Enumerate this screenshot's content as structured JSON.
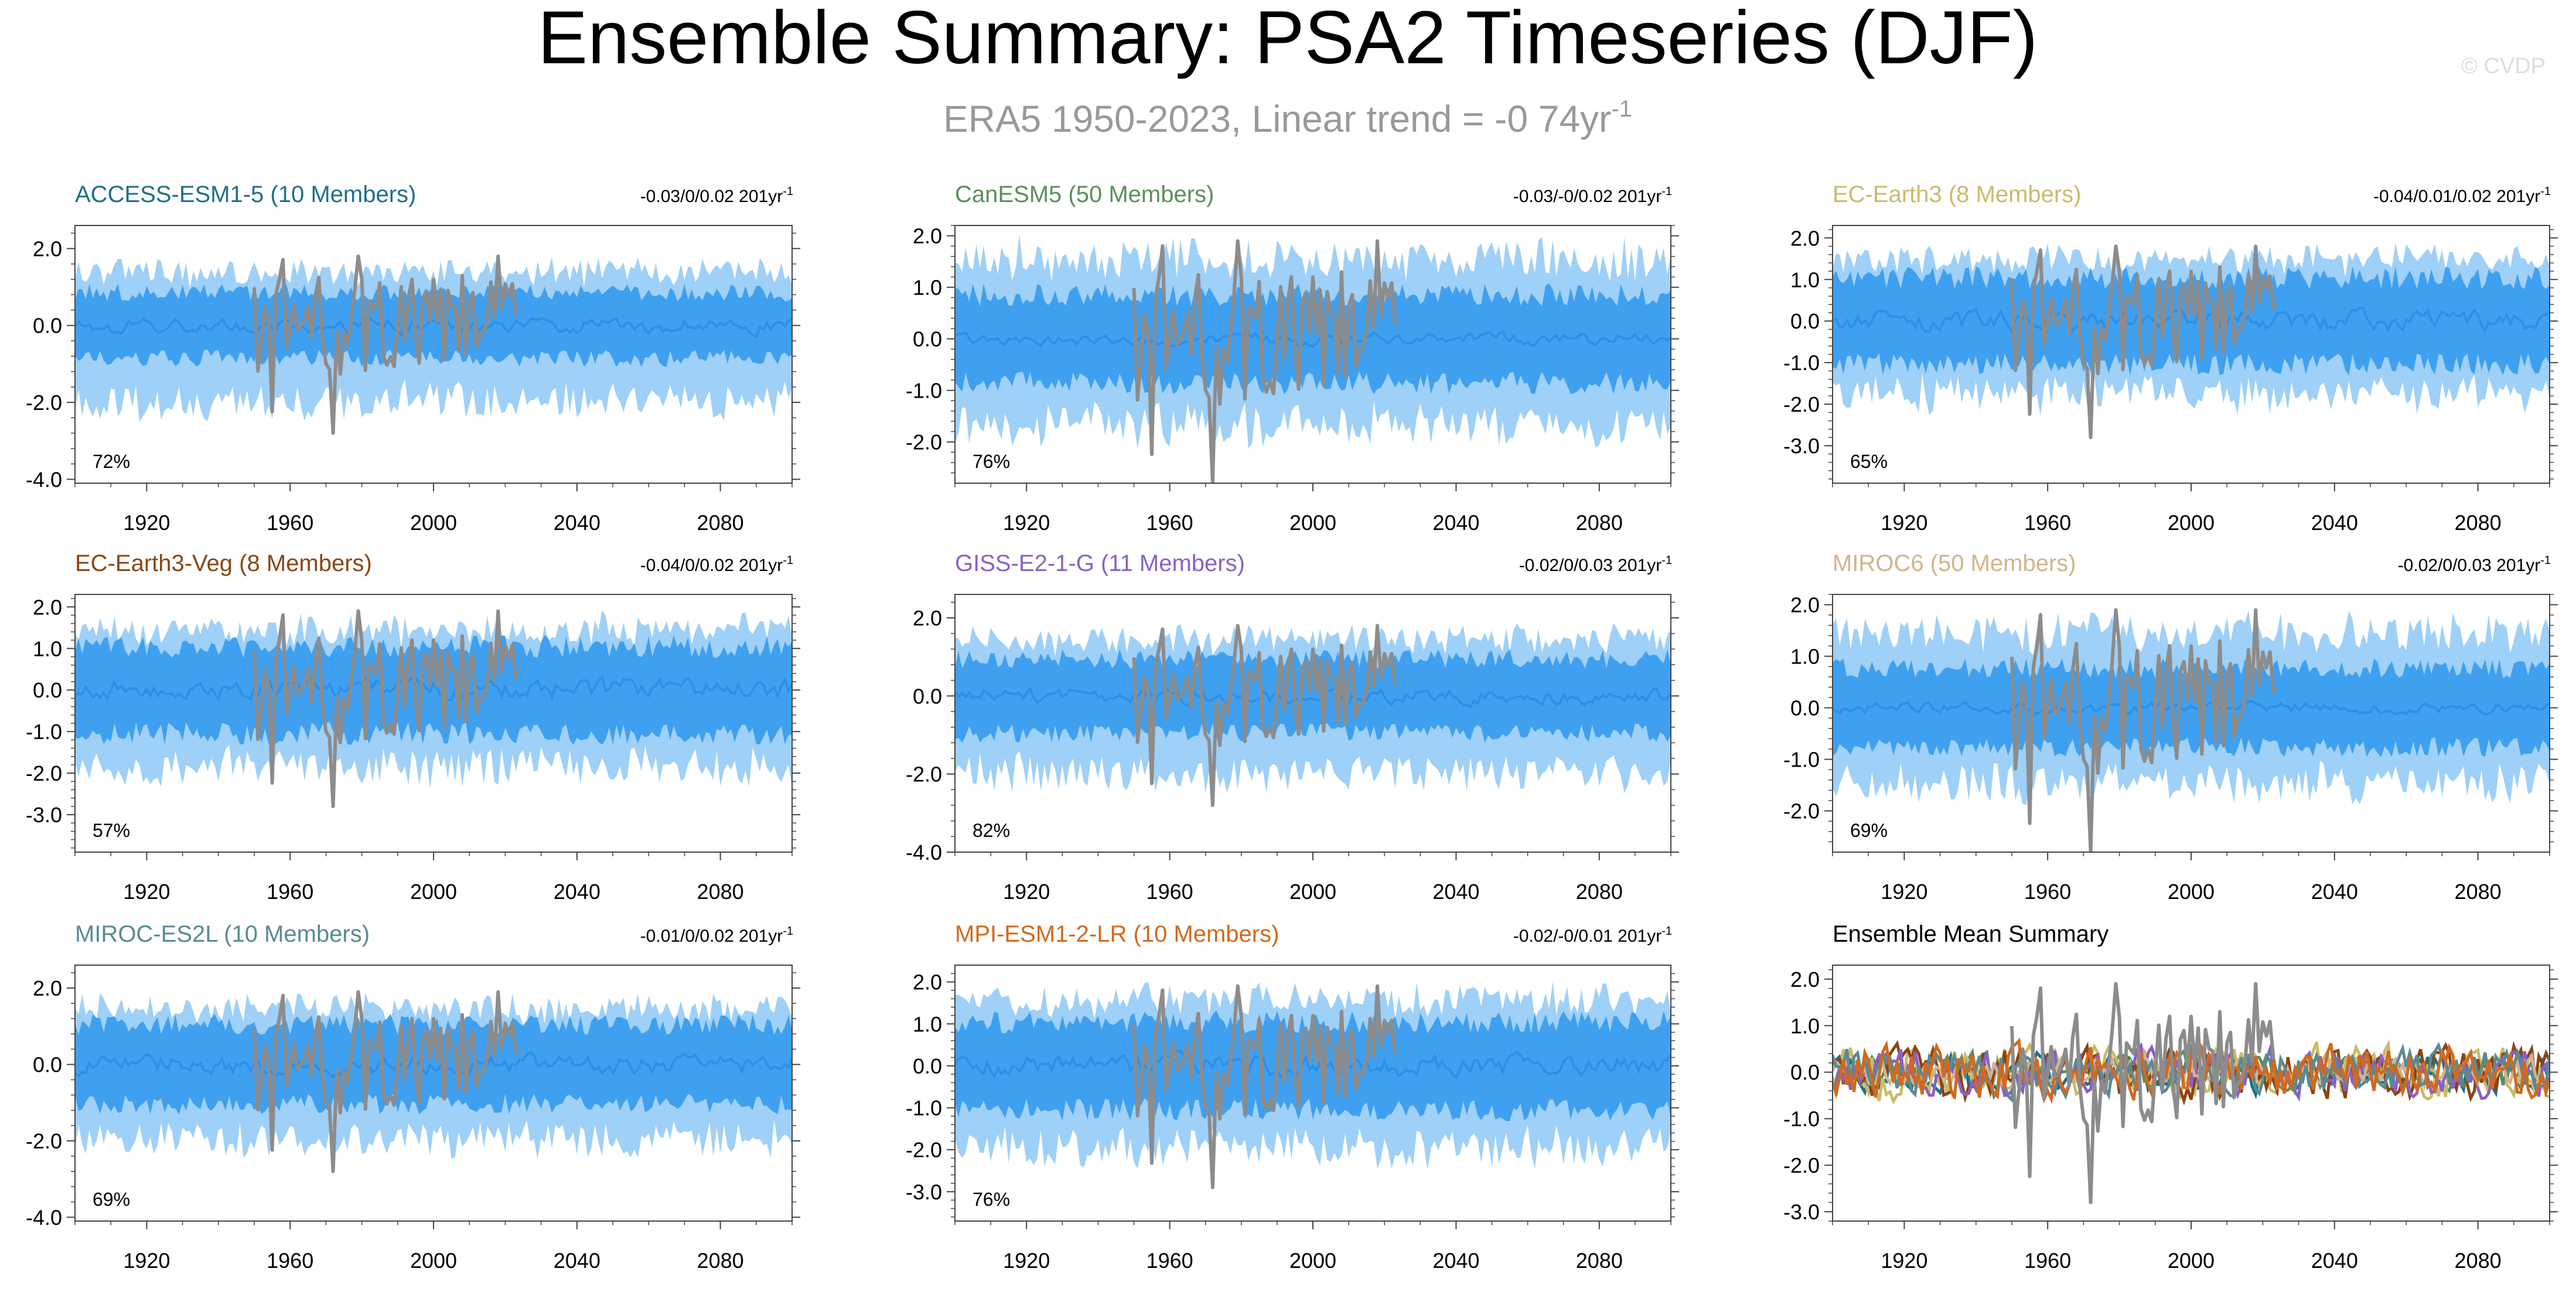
{
  "figure": {
    "title": "Ensemble Summary: PSA2 Timeseries (DJF)",
    "subtitle_prefix": "ERA5 1950-2023, Linear trend = -0 74yr",
    "subtitle_sup": "-1",
    "watermark": "© CVDP"
  },
  "colors": {
    "band_outer": "#9fd0f7",
    "band_inner": "#3fa0ef",
    "mean_line": "#2f8fe6",
    "obs_line": "#8c8c8c",
    "axis": "#444444",
    "title_text": "#000000",
    "subtitle_text": "#999999",
    "watermark_text": "#dddddd"
  },
  "chart_data": [
    {
      "type": "area",
      "title": "ACCESS-ESM1-5 (10 Members)",
      "title_color": "#1f6f8b",
      "trend_text": "-0.03/0/0.02 201yr",
      "trend_sup": "-1",
      "pct_label": "72%",
      "xlim": [
        1900,
        2100
      ],
      "ylim": [
        -4.1,
        2.6
      ],
      "yticks": [
        2.0,
        0.0,
        -2.0,
        -4.0
      ],
      "ytick_labels": [
        "2.0",
        "0.0",
        "-2.0",
        "-4.0"
      ],
      "xticks": [
        1920,
        1960,
        2000,
        2040,
        2080
      ],
      "xtick_labels": [
        "1920",
        "1960",
        "2000",
        "2040",
        "2080"
      ],
      "band_scale": 1.0,
      "series": [
        {
          "name": "ensemble_range",
          "kind": "band",
          "low": -2.0,
          "high": 1.4
        },
        {
          "name": "inner_range",
          "kind": "band",
          "low": -0.9,
          "high": 0.9
        },
        {
          "name": "ensemble_mean",
          "kind": "line",
          "amplitude": 0.2
        },
        {
          "name": "ERA5",
          "kind": "obs",
          "x_start": 1950,
          "x_end": 2023,
          "min": -2.8,
          "max": 1.8
        }
      ]
    },
    {
      "type": "area",
      "title": "CanESM5 (50 Members)",
      "title_color": "#5b8f5b",
      "trend_text": "-0.03/-0/0.02 201yr",
      "trend_sup": "-1",
      "pct_label": "76%",
      "xlim": [
        1900,
        2100
      ],
      "ylim": [
        -2.8,
        2.2
      ],
      "yticks": [
        2.0,
        1.0,
        0.0,
        -1.0,
        -2.0
      ],
      "ytick_labels": [
        "2.0",
        "1.0",
        "0.0",
        "-1.0",
        "-2.0"
      ],
      "xticks": [
        1920,
        1960,
        2000,
        2040,
        2080
      ],
      "xtick_labels": [
        "1920",
        "1960",
        "2000",
        "2040",
        "2080"
      ],
      "band_scale": 1.0,
      "series": [
        {
          "name": "ensemble_range",
          "kind": "band",
          "low": -1.7,
          "high": 1.6
        },
        {
          "name": "inner_range",
          "kind": "band",
          "low": -0.9,
          "high": 0.9
        },
        {
          "name": "ensemble_mean",
          "kind": "line",
          "amplitude": 0.12
        },
        {
          "name": "ERA5",
          "kind": "obs",
          "x_start": 1950,
          "x_end": 2023,
          "min": -2.8,
          "max": 1.9
        }
      ]
    },
    {
      "type": "area",
      "title": "EC-Earth3 (8 Members)",
      "title_color": "#c8bc6a",
      "trend_text": "-0.04/0.01/0.02 201yr",
      "trend_sup": "-1",
      "pct_label": "65%",
      "xlim": [
        1900,
        2100
      ],
      "ylim": [
        -3.9,
        2.3
      ],
      "yticks": [
        2.0,
        1.0,
        0.0,
        -1.0,
        -2.0,
        -3.0
      ],
      "ytick_labels": [
        "2.0",
        "1.0",
        "0.0",
        "-1.0",
        "-2.0",
        "-3.0"
      ],
      "xticks": [
        1920,
        1960,
        2000,
        2040,
        2080
      ],
      "xtick_labels": [
        "1920",
        "1960",
        "2000",
        "2040",
        "2080"
      ],
      "band_scale": 1.0,
      "series": [
        {
          "name": "ensemble_range",
          "kind": "band",
          "low": -1.8,
          "high": 1.5
        },
        {
          "name": "inner_range",
          "kind": "band",
          "low": -1.1,
          "high": 1.1
        },
        {
          "name": "ensemble_mean",
          "kind": "line",
          "amplitude": 0.25
        },
        {
          "name": "ERA5",
          "kind": "obs",
          "x_start": 1950,
          "x_end": 2023,
          "min": -2.8,
          "max": 1.8
        }
      ]
    },
    {
      "type": "area",
      "title": "EC-Earth3-Veg (8 Members)",
      "title_color": "#8b4513",
      "trend_text": "-0.04/0/0.02 201yr",
      "trend_sup": "-1",
      "pct_label": "57%",
      "xlim": [
        1900,
        2100
      ],
      "ylim": [
        -3.9,
        2.3
      ],
      "yticks": [
        2.0,
        1.0,
        0.0,
        -1.0,
        -2.0,
        -3.0
      ],
      "ytick_labels": [
        "2.0",
        "1.0",
        "0.0",
        "-1.0",
        "-2.0",
        "-3.0"
      ],
      "xticks": [
        1920,
        1960,
        2000,
        2040,
        2080
      ],
      "xtick_labels": [
        "1920",
        "1960",
        "2000",
        "2040",
        "2080"
      ],
      "band_scale": 1.0,
      "series": [
        {
          "name": "ensemble_range",
          "kind": "band",
          "low": -1.9,
          "high": 1.5
        },
        {
          "name": "inner_range",
          "kind": "band",
          "low": -1.1,
          "high": 1.1
        },
        {
          "name": "ensemble_mean",
          "kind": "line",
          "amplitude": 0.25
        },
        {
          "name": "ERA5",
          "kind": "obs",
          "x_start": 1950,
          "x_end": 2023,
          "min": -2.8,
          "max": 1.9
        }
      ]
    },
    {
      "type": "area",
      "title": "GISS-E2-1-G (11 Members)",
      "title_color": "#8a60c8",
      "trend_text": "-0.02/0/0.03 201yr",
      "trend_sup": "-1",
      "pct_label": "82%",
      "xlim": [
        1900,
        2100
      ],
      "ylim": [
        -4.0,
        2.6
      ],
      "yticks": [
        2.0,
        0.0,
        -2.0,
        -4.0
      ],
      "ytick_labels": [
        "2.0",
        "0.0",
        "-2.0",
        "-4.0"
      ],
      "xticks": [
        1920,
        1960,
        2000,
        2040,
        2080
      ],
      "xtick_labels": [
        "1920",
        "1960",
        "2000",
        "2040",
        "2080"
      ],
      "band_scale": 1.0,
      "series": [
        {
          "name": "ensemble_range",
          "kind": "band",
          "low": -2.0,
          "high": 1.5
        },
        {
          "name": "inner_range",
          "kind": "band",
          "low": -1.0,
          "high": 1.0
        },
        {
          "name": "ensemble_mean",
          "kind": "line",
          "amplitude": 0.2
        },
        {
          "name": "ERA5",
          "kind": "obs",
          "x_start": 1950,
          "x_end": 2023,
          "min": -2.8,
          "max": 1.8
        }
      ]
    },
    {
      "type": "area",
      "title": "MIROC6 (50 Members)",
      "title_color": "#d2b48c",
      "trend_text": "-0.02/0/0.03 201yr",
      "trend_sup": "-1",
      "pct_label": "69%",
      "xlim": [
        1900,
        2100
      ],
      "ylim": [
        -2.8,
        2.2
      ],
      "yticks": [
        2.0,
        1.0,
        0.0,
        -1.0,
        -2.0
      ],
      "ytick_labels": [
        "2.0",
        "1.0",
        "0.0",
        "-1.0",
        "-2.0"
      ],
      "xticks": [
        1920,
        1960,
        2000,
        2040,
        2080
      ],
      "xtick_labels": [
        "1920",
        "1960",
        "2000",
        "2040",
        "2080"
      ],
      "band_scale": 1.0,
      "series": [
        {
          "name": "ensemble_range",
          "kind": "band",
          "low": -1.5,
          "high": 1.5
        },
        {
          "name": "inner_range",
          "kind": "band",
          "low": -0.8,
          "high": 0.8
        },
        {
          "name": "ensemble_mean",
          "kind": "line",
          "amplitude": 0.1
        },
        {
          "name": "ERA5",
          "kind": "obs",
          "x_start": 1950,
          "x_end": 2023,
          "min": -2.8,
          "max": 1.9
        }
      ]
    },
    {
      "type": "area",
      "title": "MIROC-ES2L (10 Members)",
      "title_color": "#5a8a92",
      "trend_text": "-0.01/0/0.02 201yr",
      "trend_sup": "-1",
      "pct_label": "69%",
      "xlim": [
        1900,
        2100
      ],
      "ylim": [
        -4.1,
        2.6
      ],
      "yticks": [
        2.0,
        0.0,
        -2.0,
        -4.0
      ],
      "ytick_labels": [
        "2.0",
        "0.0",
        "-2.0",
        "-4.0"
      ],
      "xticks": [
        1920,
        1960,
        2000,
        2040,
        2080
      ],
      "xtick_labels": [
        "1920",
        "1960",
        "2000",
        "2040",
        "2080"
      ],
      "band_scale": 1.0,
      "series": [
        {
          "name": "ensemble_range",
          "kind": "band",
          "low": -2.0,
          "high": 1.5
        },
        {
          "name": "inner_range",
          "kind": "band",
          "low": -1.1,
          "high": 1.1
        },
        {
          "name": "ensemble_mean",
          "kind": "line",
          "amplitude": 0.25
        },
        {
          "name": "ERA5",
          "kind": "obs",
          "x_start": 1950,
          "x_end": 2023,
          "min": -2.8,
          "max": 1.9
        }
      ]
    },
    {
      "type": "area",
      "title": "MPI-ESM1-2-LR (10 Members)",
      "title_color": "#d2691e",
      "trend_text": "-0.02/-0/0.01 201yr",
      "trend_sup": "-1",
      "pct_label": "76%",
      "xlim": [
        1900,
        2100
      ],
      "ylim": [
        -3.7,
        2.4
      ],
      "yticks": [
        2.0,
        1.0,
        0.0,
        -1.0,
        -2.0,
        -3.0
      ],
      "ytick_labels": [
        "2.0",
        "1.0",
        "0.0",
        "-1.0",
        "-2.0",
        "-3.0"
      ],
      "xticks": [
        1920,
        1960,
        2000,
        2040,
        2080
      ],
      "xtick_labels": [
        "1920",
        "1960",
        "2000",
        "2040",
        "2080"
      ],
      "band_scale": 1.0,
      "series": [
        {
          "name": "ensemble_range",
          "kind": "band",
          "low": -2.0,
          "high": 1.6
        },
        {
          "name": "inner_range",
          "kind": "band",
          "low": -1.1,
          "high": 1.1
        },
        {
          "name": "ensemble_mean",
          "kind": "line",
          "amplitude": 0.25
        },
        {
          "name": "ERA5",
          "kind": "obs",
          "x_start": 1950,
          "x_end": 2023,
          "min": -2.9,
          "max": 1.9
        }
      ]
    },
    {
      "type": "line",
      "title": "Ensemble Mean Summary",
      "title_color": "#000000",
      "trend_text": "",
      "trend_sup": "",
      "pct_label": "",
      "xlim": [
        1900,
        2100
      ],
      "ylim": [
        -3.2,
        2.3
      ],
      "yticks": [
        2.0,
        1.0,
        0.0,
        -1.0,
        -2.0,
        -3.0
      ],
      "ytick_labels": [
        "2.0",
        "1.0",
        "0.0",
        "-1.0",
        "-2.0",
        "-3.0"
      ],
      "xticks": [
        1920,
        1960,
        2000,
        2040,
        2080
      ],
      "xtick_labels": [
        "1920",
        "1960",
        "2000",
        "2040",
        "2080"
      ],
      "series": [
        {
          "name": "ACCESS-ESM1-5",
          "kind": "mean",
          "color": "#1f6f8b",
          "amplitude": 0.35
        },
        {
          "name": "CanESM5",
          "kind": "mean",
          "color": "#5b8f5b",
          "amplitude": 0.3
        },
        {
          "name": "EC-Earth3",
          "kind": "mean",
          "color": "#c8bc6a",
          "amplitude": 0.45
        },
        {
          "name": "EC-Earth3-Veg",
          "kind": "mean",
          "color": "#8b4513",
          "amplitude": 0.45
        },
        {
          "name": "GISS-E2-1-G",
          "kind": "mean",
          "color": "#8a60c8",
          "amplitude": 0.4
        },
        {
          "name": "MIROC6",
          "kind": "mean",
          "color": "#d2b48c",
          "amplitude": 0.25
        },
        {
          "name": "MIROC-ES2L",
          "kind": "mean",
          "color": "#5a8a92",
          "amplitude": 0.4
        },
        {
          "name": "MPI-ESM1-2-LR",
          "kind": "mean",
          "color": "#d2691e",
          "amplitude": 0.45
        },
        {
          "name": "ERA5",
          "kind": "obs",
          "x_start": 1950,
          "x_end": 2023,
          "min": -2.8,
          "max": 1.9
        }
      ]
    }
  ]
}
